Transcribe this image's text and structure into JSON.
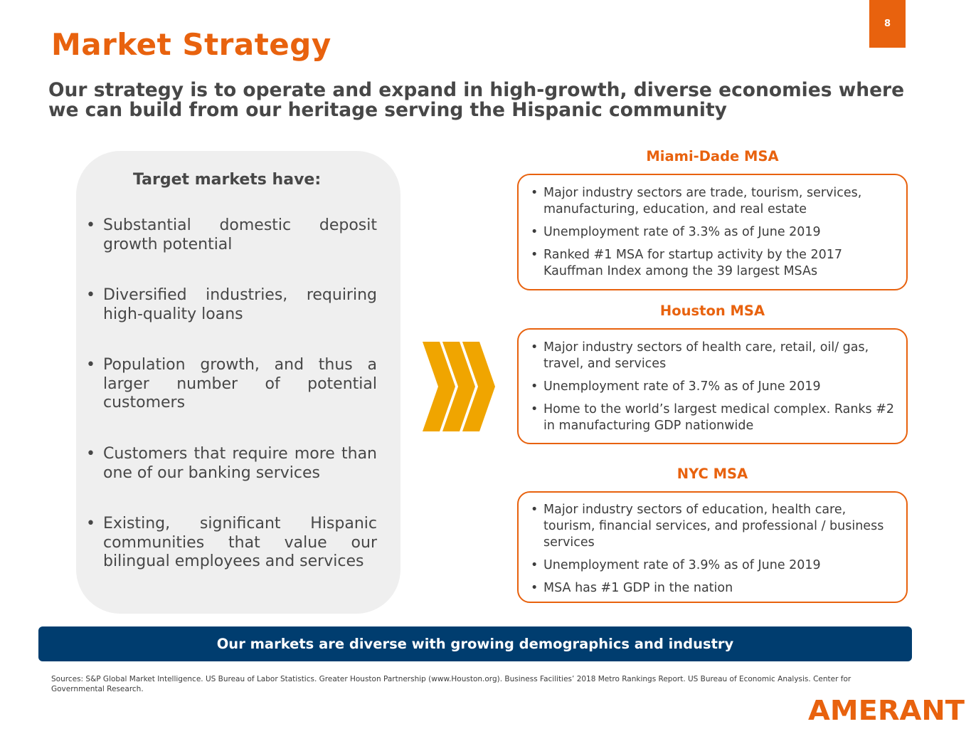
{
  "page": {
    "number": "8",
    "title": "Market Strategy"
  },
  "subtitle": "Our strategy is to operate and expand in high-growth, diverse economies where we can build from our heritage serving the Hispanic community",
  "target_markets": {
    "heading": "Target markets have:",
    "items": [
      "Substantial domestic deposit growth potential",
      "Diversified industries, requiring high-quality loans",
      "Population growth, and thus a larger number of potential customers",
      "Customers that require more than one of our banking services",
      "Existing, significant Hispanic communities that value our bilingual employees and services"
    ]
  },
  "markets": [
    {
      "title": "Miami-Dade MSA",
      "items": [
        "Major industry sectors are trade, tourism, services, manufacturing, education, and real estate",
        "Unemployment rate of 3.3% as of June 2019",
        "Ranked #1 MSA for startup activity by the 2017 Kauffman Index among the 39 largest MSAs"
      ]
    },
    {
      "title": "Houston MSA",
      "items": [
        "Major industry sectors of health care, retail, oil/ gas, travel, and services",
        "Unemployment rate of 3.7% as of June 2019",
        "Home to the world’s largest medical complex. Ranks #2 in manufacturing GDP nationwide"
      ]
    },
    {
      "title": "NYC MSA",
      "items": [
        "Major industry sectors of education, health care, tourism, financial services, and professional / business services",
        "Unemployment rate of 3.9% as of June 2019",
        "MSA has #1 GDP in the nation"
      ]
    }
  ],
  "banner": "Our markets are diverse with growing demographics and industry",
  "sources": "Sources: S&P Global Market Intelligence. US Bureau of Labor Statistics.  Greater Houston Partnership (www.Houston.org). Business Facilities’ 2018 Metro Rankings Report. US Bureau of Economic Analysis. Center for Governmental Research.",
  "logo": {
    "text": "AMERANT",
    "icon": "amerant-logo"
  },
  "colors": {
    "accent": "#e8620e",
    "navy": "#003d6f",
    "panel": "#efefef",
    "chevron": "#f0a500"
  }
}
